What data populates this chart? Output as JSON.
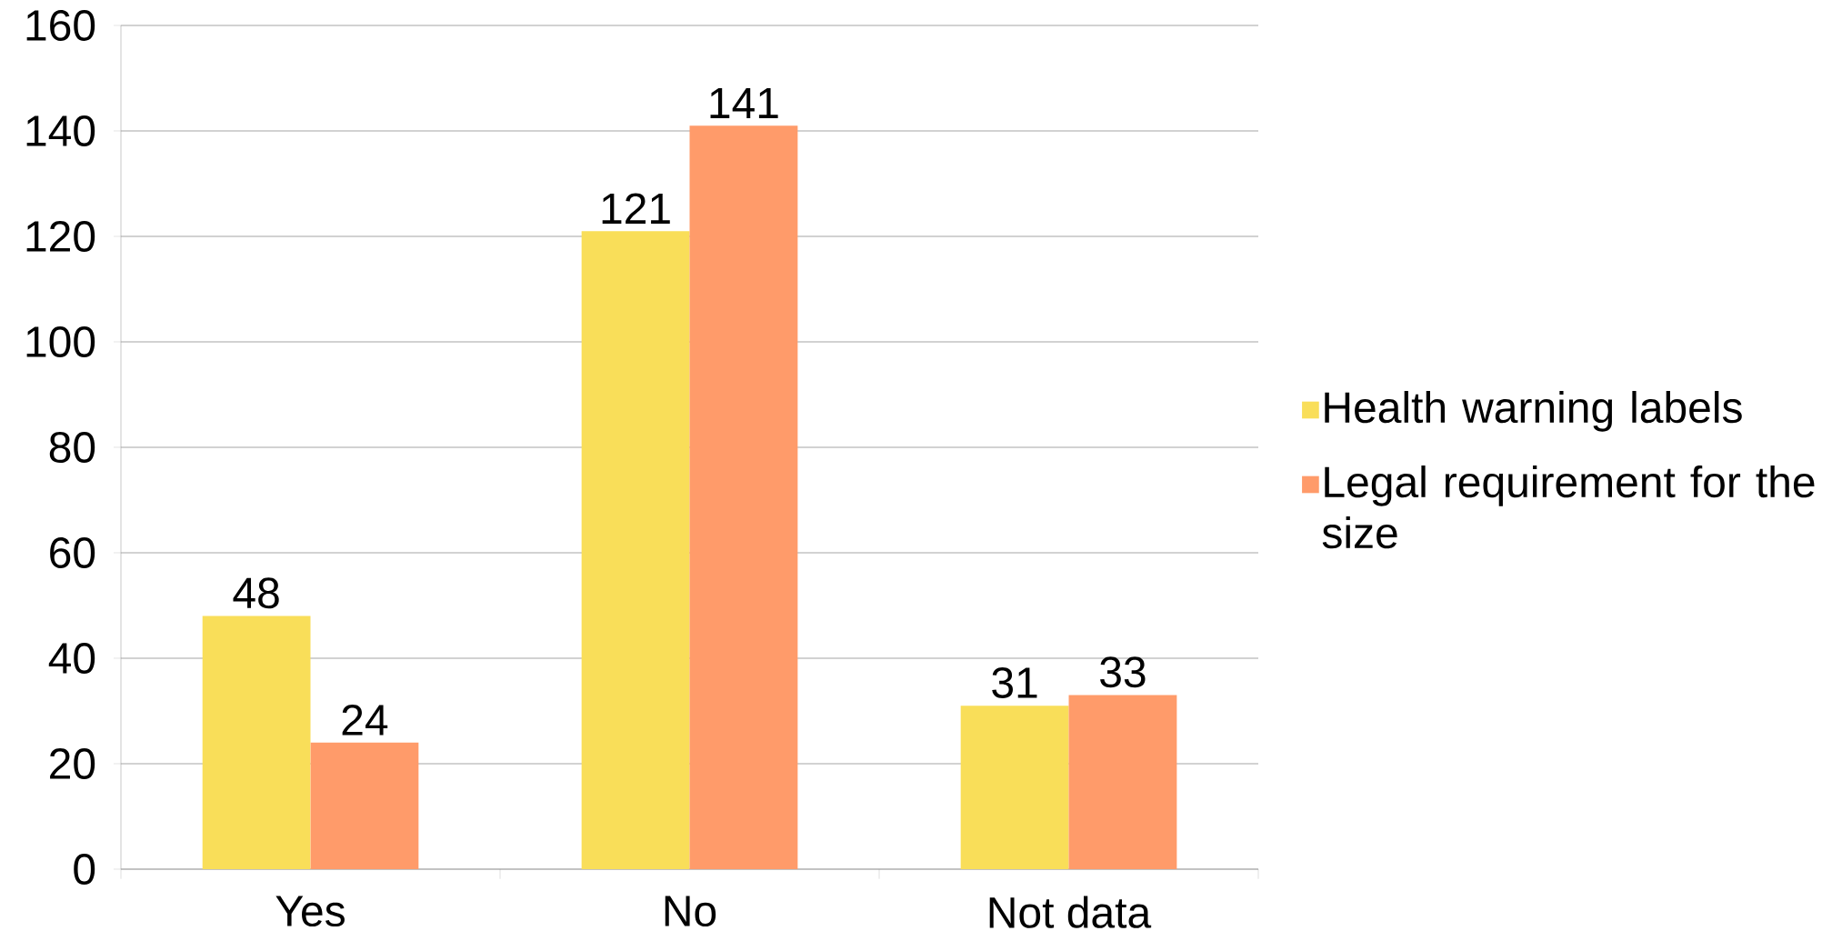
{
  "chart_data": {
    "type": "bar",
    "categories": [
      "Yes",
      "No",
      "Not data"
    ],
    "series": [
      {
        "name": "Health warning labels",
        "color": "#f9de59",
        "values": [
          48,
          121,
          31
        ]
      },
      {
        "name": "Legal requirement for the size",
        "color": "#ff9b6a",
        "values": [
          24,
          141,
          33
        ]
      }
    ],
    "ylim": [
      0,
      160
    ],
    "yticks": [
      0,
      20,
      40,
      60,
      80,
      100,
      120,
      140,
      160
    ],
    "grid": "y",
    "legend": "right",
    "data_labels": true
  }
}
